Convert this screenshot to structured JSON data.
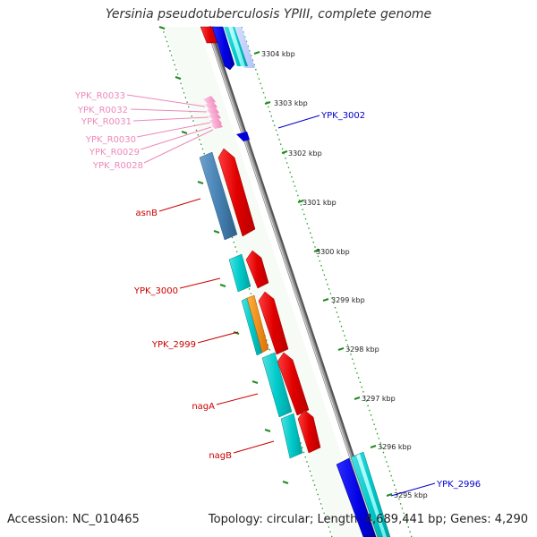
{
  "title": "Yersinia pseudotuberculosis YPIII, complete genome",
  "footer": {
    "accession": "Accession: NC_010465",
    "summary": "Topology: circular; Length: 4,689,441 bp; Genes: 4,290"
  },
  "ruler": [
    {
      "label": "3304 kbp"
    },
    {
      "label": "3303 kbp"
    },
    {
      "label": "3302 kbp"
    },
    {
      "label": "3301 kbp"
    },
    {
      "label": "3300 kbp"
    },
    {
      "label": "3299 kbp"
    },
    {
      "label": "3298 kbp"
    },
    {
      "label": "3297 kbp"
    },
    {
      "label": "3296 kbp"
    },
    {
      "label": "3295 kbp"
    }
  ],
  "gene_labels": {
    "trna": [
      "YPK_R0033",
      "YPK_R0032",
      "YPK_R0031",
      "YPK_R0030",
      "YPK_R0029",
      "YPK_R0028"
    ],
    "asnB": "asnB",
    "ypk3000": "YPK_3000",
    "ypk2999": "YPK_2999",
    "nagA": "nagA",
    "nagB": "nagB",
    "ypk3002": "YPK_3002",
    "ypk2996": "YPK_2996"
  },
  "colors": {
    "forward_cds": "#ff0000",
    "reverse_cds": "#0000ff",
    "trna": "#ff99cc",
    "cog_cyan": "#00cccc",
    "cog_steel": "#4682b4",
    "cog_orange": "#ff8c00",
    "backbone": "#888888",
    "ruler": "#228b22",
    "label_red": "#cc0000",
    "label_blue": "#0000cc",
    "label_pink": "#ee88bb"
  }
}
